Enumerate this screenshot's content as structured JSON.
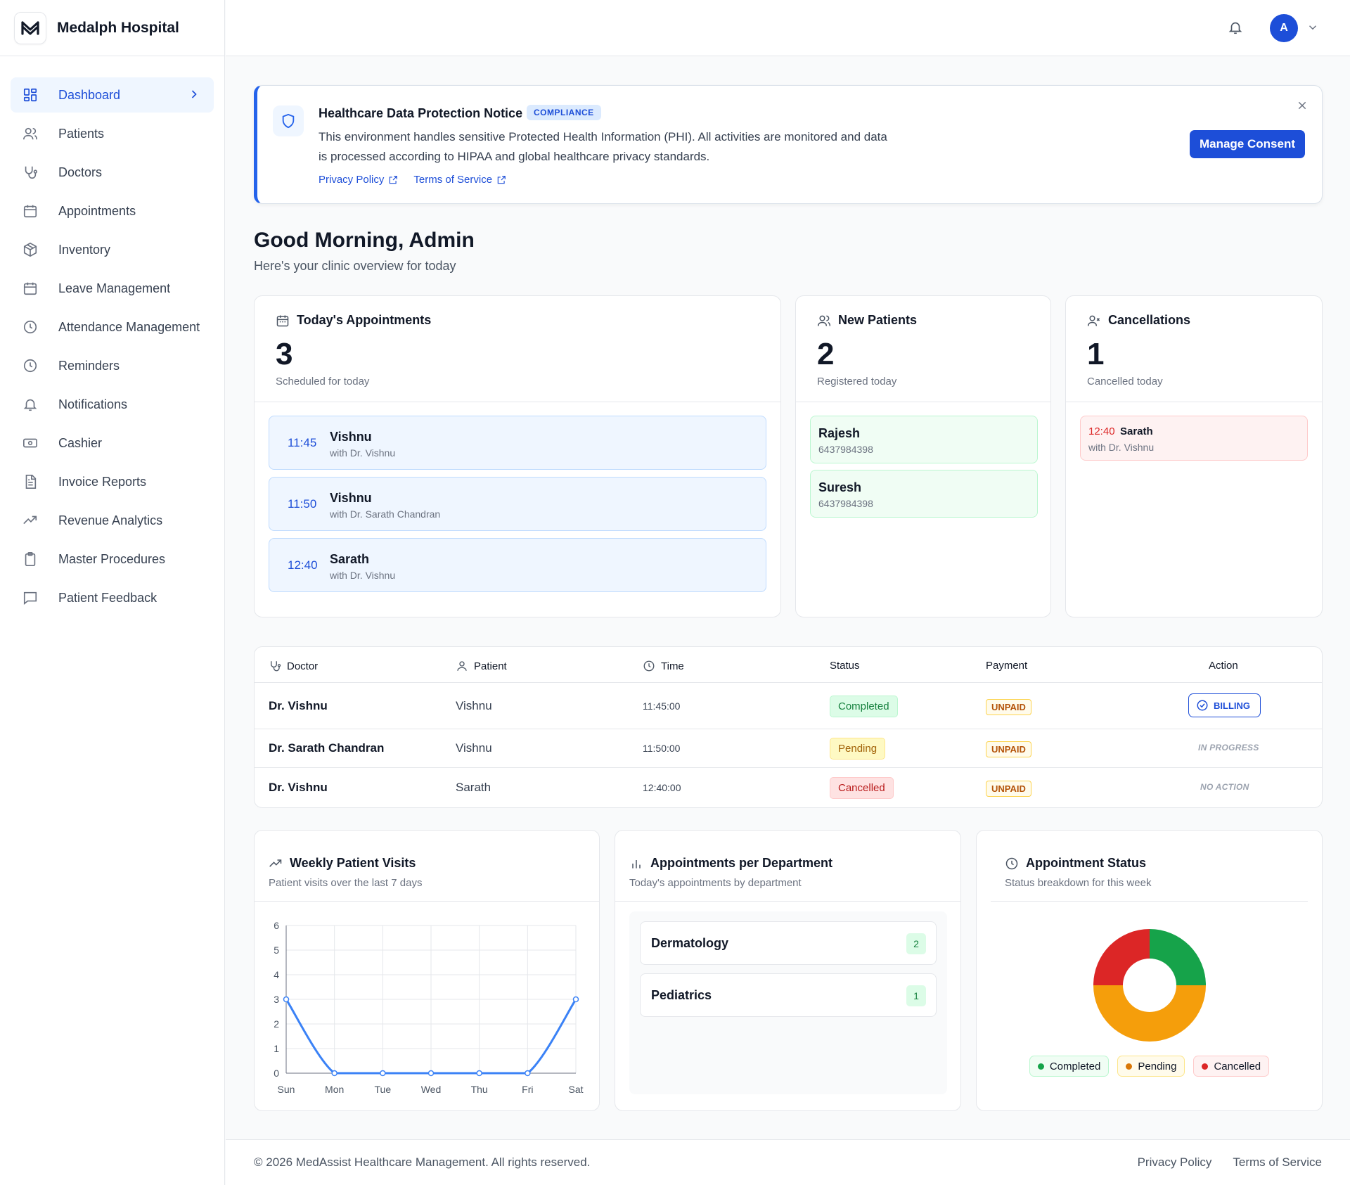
{
  "brand": {
    "name": "Medalph Hospital"
  },
  "sidebar": {
    "items": [
      {
        "label": "Dashboard",
        "icon": "grid-icon",
        "active": true
      },
      {
        "label": "Patients",
        "icon": "users-icon"
      },
      {
        "label": "Doctors",
        "icon": "stethoscope-icon"
      },
      {
        "label": "Appointments",
        "icon": "calendar-icon"
      },
      {
        "label": "Inventory",
        "icon": "package-icon"
      },
      {
        "label": "Leave Management",
        "icon": "calendar-icon"
      },
      {
        "label": "Attendance Management",
        "icon": "clock-icon"
      },
      {
        "label": "Reminders",
        "icon": "clock-icon"
      },
      {
        "label": "Notifications",
        "icon": "bell-icon"
      },
      {
        "label": "Cashier",
        "icon": "banknote-icon"
      },
      {
        "label": "Invoice Reports",
        "icon": "file-icon"
      },
      {
        "label": "Revenue Analytics",
        "icon": "trending-up-icon"
      },
      {
        "label": "Master Procedures",
        "icon": "clipboard-icon"
      },
      {
        "label": "Patient Feedback",
        "icon": "message-icon"
      }
    ]
  },
  "header": {
    "avatar_initial": "A"
  },
  "notice": {
    "title": "Healthcare Data Protection Notice",
    "badge": "COMPLIANCE",
    "text_line1": "This environment handles sensitive Protected Health Information (PHI). All activities are monitored and data",
    "text_line2": "is processed according to HIPAA and global healthcare privacy standards.",
    "privacy_link": "Privacy Policy",
    "terms_link": "Terms of Service",
    "button": "Manage Consent"
  },
  "greeting": {
    "title": "Good Morning, Admin",
    "subtitle": "Here's your clinic overview for today"
  },
  "stats": {
    "appointments": {
      "title": "Today's Appointments",
      "count": "3",
      "sub": "Scheduled for today",
      "items": [
        {
          "time": "11:45",
          "name": "Vishnu",
          "doctor": "with Dr. Vishnu"
        },
        {
          "time": "11:50",
          "name": "Vishnu",
          "doctor": "with Dr. Sarath Chandran"
        },
        {
          "time": "12:40",
          "name": "Sarath",
          "doctor": "with Dr. Vishnu"
        }
      ]
    },
    "new_patients": {
      "title": "New Patients",
      "count": "2",
      "sub": "Registered today",
      "items": [
        {
          "name": "Rajesh",
          "phone": "6437984398"
        },
        {
          "name": "Suresh",
          "phone": "6437984398"
        }
      ]
    },
    "cancellations": {
      "title": "Cancellations",
      "count": "1",
      "sub": "Cancelled today",
      "items": [
        {
          "time": "12:40",
          "name": "Sarath",
          "doctor": "with Dr. Vishnu"
        }
      ]
    }
  },
  "table": {
    "headers": {
      "doctor": "Doctor",
      "patient": "Patient",
      "time": "Time",
      "status": "Status",
      "payment": "Payment",
      "action": "Action"
    },
    "rows": [
      {
        "doctor": "Dr. Vishnu",
        "patient": "Vishnu",
        "time": "11:45:00",
        "status": "Completed",
        "payment": "UNPAID",
        "action": "BILLING"
      },
      {
        "doctor": "Dr. Sarath Chandran",
        "patient": "Vishnu",
        "time": "11:50:00",
        "status": "Pending",
        "payment": "UNPAID",
        "action": "IN PROGRESS"
      },
      {
        "doctor": "Dr. Vishnu",
        "patient": "Sarath",
        "time": "12:40:00",
        "status": "Cancelled",
        "payment": "UNPAID",
        "action": "NO ACTION"
      }
    ]
  },
  "weekly": {
    "title": "Weekly Patient Visits",
    "subtitle": "Patient visits over the last 7 days"
  },
  "departments": {
    "title": "Appointments per Department",
    "subtitle": "Today's appointments by department",
    "items": [
      {
        "name": "Dermatology",
        "count": "2"
      },
      {
        "name": "Pediatrics",
        "count": "1"
      }
    ]
  },
  "status_card": {
    "title": "Appointment Status",
    "subtitle": "Status breakdown for this week",
    "legend": [
      "Completed",
      "Pending",
      "Cancelled"
    ]
  },
  "chart_data": [
    {
      "type": "line",
      "categories": [
        "Sun",
        "Mon",
        "Tue",
        "Wed",
        "Thu",
        "Fri",
        "Sat"
      ],
      "values": [
        3,
        0,
        0,
        0,
        0,
        0,
        3
      ],
      "ylim": [
        0,
        6
      ],
      "yticks": [
        "0",
        "1",
        "2",
        "3",
        "4",
        "5",
        "6"
      ],
      "grid": true,
      "color": "#3b82f6"
    },
    {
      "type": "pie",
      "donut": true,
      "categories": [
        "Completed",
        "Pending",
        "Cancelled"
      ],
      "values": [
        1,
        2,
        1
      ],
      "colors": [
        "#16a34a",
        "#f59e0b",
        "#dc2626"
      ],
      "legend": "bottom"
    }
  ],
  "footer": {
    "copyright": "© 2026 MedAssist Healthcare Management. All rights reserved.",
    "privacy": "Privacy Policy",
    "terms": "Terms of Service"
  }
}
